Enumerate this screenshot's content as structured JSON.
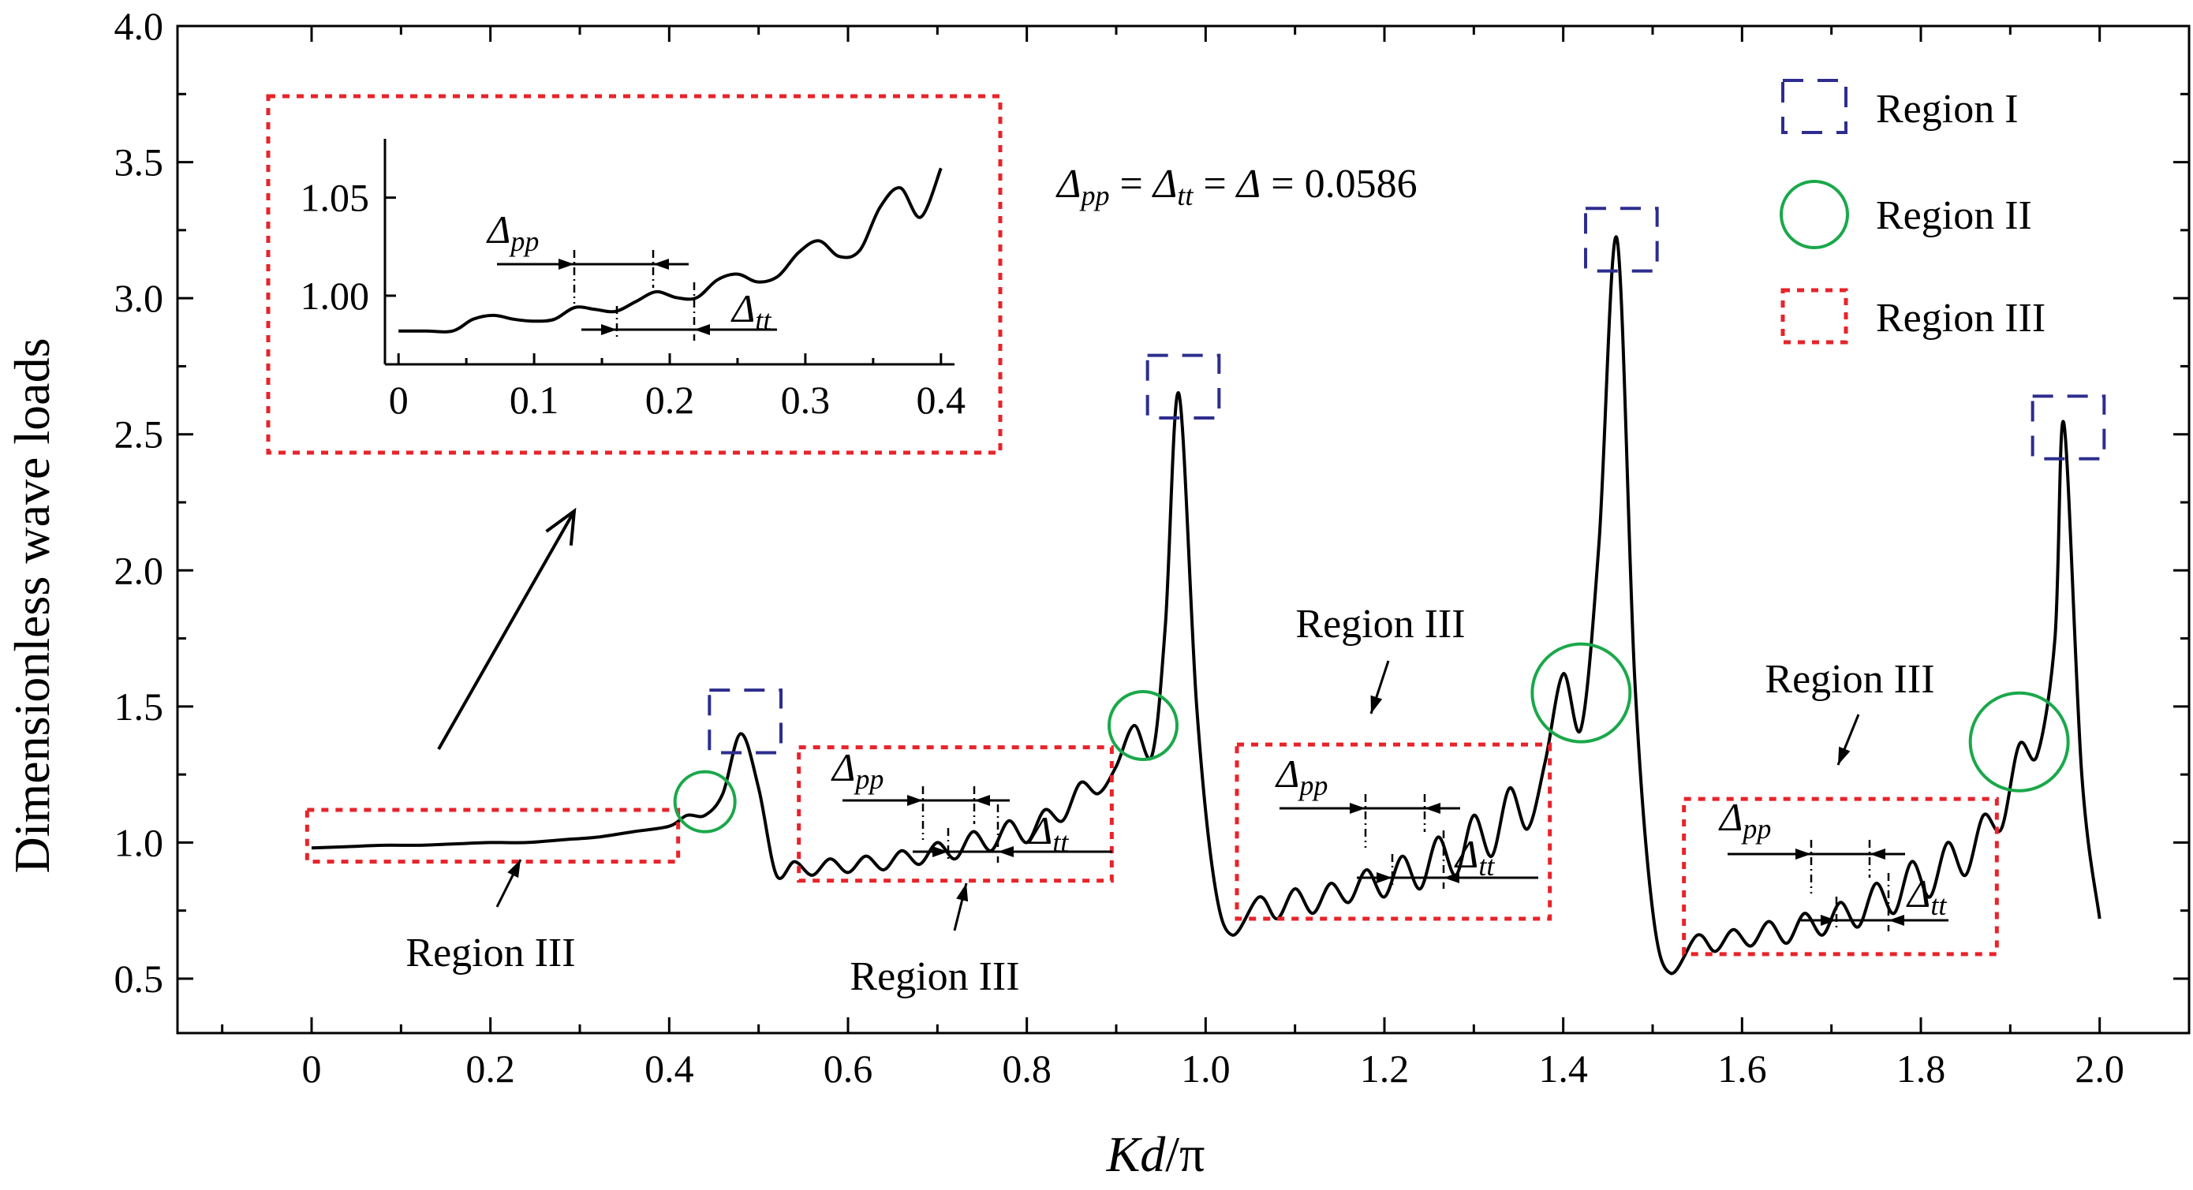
{
  "chart_data": {
    "type": "line",
    "title": "",
    "xlabel_italic": "Kd",
    "xlabel_rest": "/π",
    "ylabel": "Dimensionless wave loads",
    "xlim": [
      -0.15,
      2.1
    ],
    "ylim": [
      0.3,
      4.0
    ],
    "xticks": [
      0,
      0.2,
      0.4,
      0.6,
      0.8,
      1.0,
      1.2,
      1.4,
      1.6,
      1.8,
      2.0
    ],
    "xtick_labels": [
      "0",
      "0.2",
      "0.4",
      "0.6",
      "0.8",
      "1.0",
      "1.2",
      "1.4",
      "1.6",
      "1.8",
      "2.0"
    ],
    "yticks": [
      0.5,
      1.0,
      1.5,
      2.0,
      2.5,
      3.0,
      3.5,
      4.0
    ],
    "ytick_labels": [
      "0.5",
      "1.0",
      "1.5",
      "2.0",
      "2.5",
      "3.0",
      "3.5",
      "4.0"
    ],
    "series": [
      {
        "name": "Dimensionless wave loads",
        "x": [
          0,
          0.04,
          0.08,
          0.12,
          0.16,
          0.2,
          0.24,
          0.28,
          0.32,
          0.36,
          0.4,
          0.42,
          0.44,
          0.46,
          0.48,
          0.5,
          0.52,
          0.54,
          0.56,
          0.58,
          0.6,
          0.62,
          0.64,
          0.66,
          0.68,
          0.7,
          0.72,
          0.74,
          0.76,
          0.78,
          0.8,
          0.82,
          0.84,
          0.86,
          0.88,
          0.9,
          0.92,
          0.94,
          0.955,
          0.97,
          0.99,
          1.01,
          1.03,
          1.06,
          1.08,
          1.1,
          1.12,
          1.14,
          1.16,
          1.18,
          1.2,
          1.22,
          1.24,
          1.26,
          1.28,
          1.3,
          1.32,
          1.34,
          1.36,
          1.38,
          1.4,
          1.42,
          1.44,
          1.46,
          1.48,
          1.5,
          1.52,
          1.55,
          1.57,
          1.59,
          1.61,
          1.63,
          1.65,
          1.67,
          1.69,
          1.71,
          1.73,
          1.75,
          1.77,
          1.79,
          1.81,
          1.83,
          1.85,
          1.87,
          1.89,
          1.91,
          1.93,
          1.95,
          1.96,
          1.98,
          2.0
        ],
        "y": [
          0.98,
          0.985,
          0.99,
          0.99,
          0.995,
          1.0,
          1.0,
          1.01,
          1.02,
          1.04,
          1.06,
          1.1,
          1.1,
          1.18,
          1.4,
          1.2,
          0.88,
          0.93,
          0.88,
          0.94,
          0.89,
          0.95,
          0.9,
          0.97,
          0.92,
          1.0,
          0.94,
          1.04,
          0.97,
          1.08,
          1.0,
          1.12,
          1.08,
          1.22,
          1.18,
          1.28,
          1.43,
          1.32,
          1.8,
          2.65,
          1.5,
          0.85,
          0.66,
          0.8,
          0.72,
          0.83,
          0.74,
          0.85,
          0.78,
          0.9,
          0.8,
          0.95,
          0.83,
          1.02,
          0.88,
          1.1,
          0.95,
          1.2,
          1.05,
          1.3,
          1.62,
          1.42,
          2.1,
          3.22,
          1.6,
          0.75,
          0.52,
          0.66,
          0.6,
          0.68,
          0.62,
          0.71,
          0.63,
          0.74,
          0.66,
          0.78,
          0.69,
          0.85,
          0.74,
          0.93,
          0.8,
          1.0,
          0.88,
          1.1,
          1.05,
          1.36,
          1.32,
          1.75,
          2.54,
          1.25,
          0.72
        ]
      }
    ],
    "inset": {
      "xlim": [
        -0.01,
        0.41
      ],
      "ylim": [
        0.965,
        1.08
      ],
      "xticks": [
        0,
        0.1,
        0.2,
        0.3,
        0.4
      ],
      "xtick_labels": [
        "0",
        "0.1",
        "0.2",
        "0.3",
        "0.4"
      ],
      "yticks": [
        1.0,
        1.05
      ],
      "ytick_labels": [
        "1.00",
        "1.05"
      ],
      "x": [
        0,
        0.02,
        0.04,
        0.055,
        0.07,
        0.085,
        0.1,
        0.115,
        0.13,
        0.145,
        0.16,
        0.175,
        0.19,
        0.205,
        0.22,
        0.235,
        0.25,
        0.265,
        0.28,
        0.295,
        0.31,
        0.325,
        0.34,
        0.355,
        0.37,
        0.385,
        0.4
      ],
      "y": [
        0.982,
        0.982,
        0.982,
        0.988,
        0.99,
        0.988,
        0.987,
        0.988,
        0.994,
        0.993,
        0.992,
        0.997,
        1.002,
        0.999,
        0.999,
        1.008,
        1.011,
        1.007,
        1.01,
        1.022,
        1.028,
        1.02,
        1.023,
        1.045,
        1.055,
        1.04,
        1.065
      ]
    },
    "annotations": {
      "formula": {
        "a": "Δ",
        "pp": "pp",
        "eq1": " = ",
        "b": "Δ",
        "tt": "tt",
        "eq2": " = ",
        "c": "Δ",
        "val": " = 0.0586"
      },
      "delta_main": "Δ",
      "delta_pp_sub": "pp",
      "delta_tt_sub": "tt",
      "region_iii_label": "Region III"
    },
    "legend": {
      "placement": "top-right",
      "items": [
        {
          "label": "Region I",
          "style": "dashed-square",
          "color": "#2d2d8f"
        },
        {
          "label": "Region II",
          "style": "circle",
          "color": "#1aa84a"
        },
        {
          "label": "Region III",
          "style": "dotted-square",
          "color": "#e8232a"
        }
      ]
    }
  }
}
